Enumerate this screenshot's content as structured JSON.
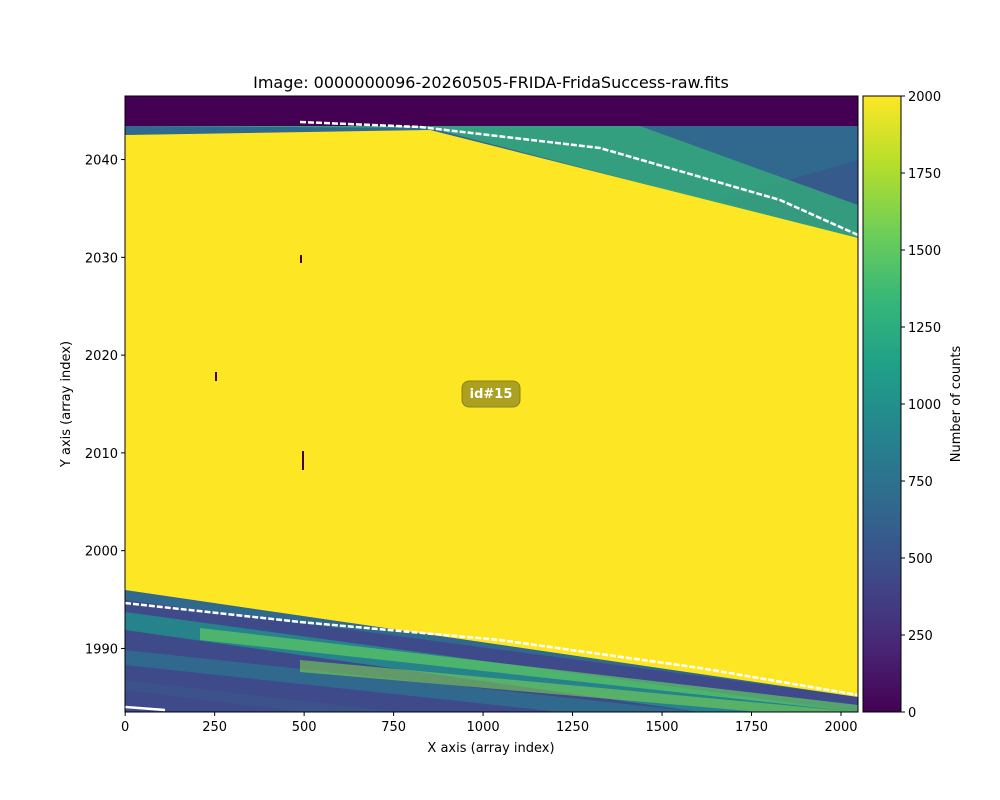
{
  "chart_data": {
    "type": "image",
    "title": "Image: 0000000096-20260505-FRIDA-FridaSuccess-raw.fits",
    "x_label": "X axis (array index)",
    "y_label": "Y axis (array index)",
    "xlim": [
      -0.5,
      2047.5
    ],
    "ylim": [
      1983.5,
      2046.5
    ],
    "xticks": [
      0,
      250,
      500,
      750,
      1000,
      1250,
      1500,
      1750,
      2000
    ],
    "yticks": [
      1990,
      2000,
      2010,
      2020,
      2030,
      2040
    ],
    "colorbar": {
      "label": "Number of counts",
      "colormap": "viridis",
      "lim": [
        0,
        2000
      ],
      "ticks": [
        0,
        250,
        500,
        750,
        1000,
        1250,
        1500,
        1750,
        2000
      ]
    },
    "annotation": "id#15"
  }
}
